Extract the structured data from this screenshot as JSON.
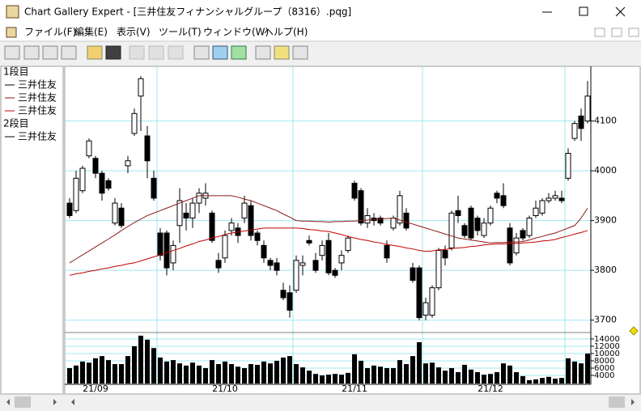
{
  "window": {
    "title": "Chart Gallery Expert - [三井住友フィナンシャルグループ（8316）.pqg]",
    "menu": [
      "ファイル(F)",
      "編集(E)",
      "表示(V)",
      "ツール(T)",
      "ウィンドウ(W)",
      "ヘルプ(H)"
    ]
  },
  "legend": [
    {
      "label": "1段目"
    },
    {
      "label": "2段目"
    }
  ],
  "chart_data": {
    "type": "candlestick",
    "categories": [
      null,
      null,
      null,
      null,
      "21/09",
      null,
      null,
      null,
      null,
      null,
      null,
      null,
      null,
      null,
      null,
      null,
      null,
      null,
      null,
      null,
      null,
      null,
      null,
      null,
      "21/10",
      null,
      null,
      null,
      null,
      null,
      null,
      null,
      null,
      null,
      null,
      null,
      null,
      null,
      null,
      null,
      null,
      null,
      null,
      null,
      "21/11",
      null,
      null,
      null,
      null,
      null,
      null,
      null,
      null,
      null,
      null,
      null,
      null,
      null,
      null,
      null,
      null,
      null,
      null,
      null,
      null,
      "21/12",
      null,
      null,
      null,
      null,
      null,
      null,
      null,
      null,
      null,
      null,
      null,
      null,
      null,
      null,
      null
    ],
    "ylim": [
      3680,
      4200
    ],
    "yticks": [
      4100,
      4000,
      3900,
      3800,
      3700
    ],
    "xgrid": [
      13.5,
      34.5,
      54.5,
      76.5
    ],
    "grid": true,
    "series": [
      {
        "name": "三井住友",
        "color": "#000000",
        "open": [
          3935,
          3920,
          3960,
          4030,
          4025,
          3995,
          3980,
          3895,
          3925,
          4010,
          4075,
          4150,
          4070,
          3985,
          3875,
          3875,
          3815,
          3890,
          3915,
          3905,
          3935,
          3945,
          3915,
          3820,
          3825,
          3880,
          3885,
          3905,
          3930,
          3875,
          3850,
          3820,
          3815,
          3760,
          3755,
          3760,
          3810,
          3860,
          3820,
          3830,
          3860,
          3800,
          3815,
          3840,
          3975,
          3960,
          3895,
          3905,
          3905,
          3850,
          3885,
          3895,
          3915,
          3805,
          3805,
          3710,
          3710,
          3765,
          3840,
          3845,
          3920,
          3890,
          3925,
          3905,
          3870,
          3895,
          3955,
          3950,
          3885,
          3835,
          3880,
          3870,
          3910,
          3915,
          3940,
          3945,
          3945,
          3985,
          4065,
          4110,
          4100
        ],
        "high": [
          3945,
          4000,
          4010,
          4065,
          4030,
          4000,
          3985,
          3945,
          3935,
          4030,
          4125,
          4190,
          4090,
          4000,
          3885,
          3880,
          3860,
          3965,
          3935,
          3945,
          3965,
          3975,
          3920,
          3835,
          3880,
          3905,
          3895,
          3950,
          3940,
          3880,
          3860,
          3825,
          3825,
          3775,
          3770,
          3830,
          3830,
          3870,
          3835,
          3860,
          3875,
          3805,
          3840,
          3870,
          3980,
          3965,
          3925,
          3915,
          3910,
          3860,
          3910,
          3960,
          3925,
          3815,
          3810,
          3745,
          3770,
          3845,
          3850,
          3920,
          3950,
          3895,
          3930,
          3910,
          3905,
          3930,
          3960,
          3975,
          3895,
          3875,
          3885,
          3910,
          3940,
          3945,
          3955,
          3960,
          3960,
          4045,
          4100,
          4125,
          4180
        ],
        "low": [
          3905,
          3915,
          3955,
          4025,
          3985,
          3940,
          3960,
          3890,
          3885,
          3995,
          4070,
          4080,
          3985,
          3940,
          3820,
          3790,
          3800,
          3855,
          3880,
          3885,
          3915,
          3930,
          3855,
          3795,
          3815,
          3870,
          3855,
          3895,
          3860,
          3850,
          3815,
          3800,
          3790,
          3740,
          3705,
          3755,
          3790,
          3850,
          3795,
          3820,
          3790,
          3785,
          3800,
          3835,
          3940,
          3890,
          3885,
          3890,
          3890,
          3815,
          3880,
          3890,
          3880,
          3775,
          3700,
          3700,
          3705,
          3760,
          3810,
          3840,
          3895,
          3865,
          3860,
          3870,
          3865,
          3890,
          3935,
          3925,
          3810,
          3830,
          3860,
          3865,
          3905,
          3910,
          3935,
          3940,
          3935,
          3980,
          4060,
          4060,
          4095
        ],
        "close": [
          3910,
          3985,
          4005,
          4060,
          3995,
          3955,
          3965,
          3935,
          3890,
          4020,
          4115,
          4185,
          4020,
          3945,
          3830,
          3805,
          3850,
          3940,
          3905,
          3935,
          3955,
          3955,
          3860,
          3805,
          3870,
          3895,
          3870,
          3935,
          3870,
          3860,
          3825,
          3810,
          3800,
          3745,
          3720,
          3820,
          3815,
          3855,
          3800,
          3850,
          3795,
          3790,
          3830,
          3865,
          3945,
          3895,
          3910,
          3900,
          3895,
          3825,
          3905,
          3950,
          3885,
          3780,
          3705,
          3735,
          3765,
          3840,
          3825,
          3915,
          3910,
          3870,
          3865,
          3880,
          3895,
          3925,
          3945,
          3930,
          3815,
          3865,
          3865,
          3905,
          3925,
          3940,
          3945,
          3950,
          3940,
          4035,
          4095,
          4085,
          4150
        ]
      },
      {
        "name": "三井住友",
        "color": "#8b1a1a",
        "values": [
          3815,
          3823,
          3831,
          3839,
          3847,
          3855,
          3863,
          3871,
          3880,
          3888,
          3896,
          3903,
          3910,
          3915,
          3920,
          3925,
          3930,
          3935,
          3940,
          3945,
          3950,
          3950,
          3950,
          3950,
          3950,
          3950,
          3947,
          3943,
          3940,
          3935,
          3930,
          3925,
          3920,
          3913,
          3907,
          3900,
          3899,
          3899,
          3898,
          3898,
          3897,
          3898,
          3898,
          3899,
          3899,
          3900,
          3901,
          3902,
          3903,
          3904,
          3905,
          3901,
          3897,
          3893,
          3889,
          3885,
          3881,
          3877,
          3873,
          3869,
          3865,
          3863,
          3861,
          3859,
          3857,
          3855,
          3856,
          3856,
          3857,
          3857,
          3858,
          3861,
          3865,
          3868,
          3872,
          3875,
          3880,
          3885,
          3890,
          3905,
          3925
        ]
      },
      {
        "name": "三井住友",
        "color": "#c00000",
        "values": [
          3790,
          3793,
          3795,
          3798,
          3800,
          3803,
          3805,
          3808,
          3810,
          3813,
          3815,
          3819,
          3823,
          3827,
          3831,
          3835,
          3840,
          3844,
          3849,
          3853,
          3858,
          3861,
          3865,
          3868,
          3872,
          3875,
          3877,
          3879,
          3881,
          3883,
          3885,
          3885,
          3885,
          3885,
          3885,
          3885,
          3884,
          3882,
          3881,
          3879,
          3878,
          3875,
          3872,
          3868,
          3865,
          3862,
          3860,
          3857,
          3855,
          3852,
          3850,
          3848,
          3845,
          3843,
          3840,
          3838,
          3839,
          3841,
          3842,
          3844,
          3845,
          3846,
          3848,
          3849,
          3851,
          3852,
          3853,
          3853,
          3854,
          3854,
          3855,
          3856,
          3857,
          3859,
          3860,
          3862,
          3866,
          3869,
          3873,
          3876,
          3880
        ]
      }
    ],
    "volume": {
      "name": "三井住友",
      "color": "#000000",
      "ylim": [
        1780,
        15100
      ],
      "yticks": [
        14000,
        12000,
        10000,
        8000,
        6000,
        4000
      ],
      "values": [
        6000,
        6700,
        7800,
        7500,
        8700,
        9300,
        8200,
        7100,
        7100,
        9300,
        12000,
        14900,
        13800,
        11500,
        8900,
        7800,
        8200,
        7300,
        6700,
        7500,
        6700,
        6000,
        8200,
        7100,
        7800,
        7100,
        6400,
        6000,
        7100,
        6900,
        7800,
        7300,
        8000,
        8900,
        9300,
        7100,
        6200,
        5300,
        4400,
        4000,
        4200,
        4400,
        4200,
        4700,
        9800,
        8000,
        6000,
        6700,
        6400,
        6000,
        6000,
        8200,
        7100,
        9300,
        13100,
        7300,
        7500,
        6200,
        5300,
        6000,
        4900,
        6900,
        5600,
        4900,
        4200,
        4400,
        4900,
        7300,
        6700,
        4900,
        3800,
        2700,
        2900,
        3300,
        3600,
        3100,
        3300,
        8700,
        7800,
        7300,
        10000
      ]
    }
  }
}
